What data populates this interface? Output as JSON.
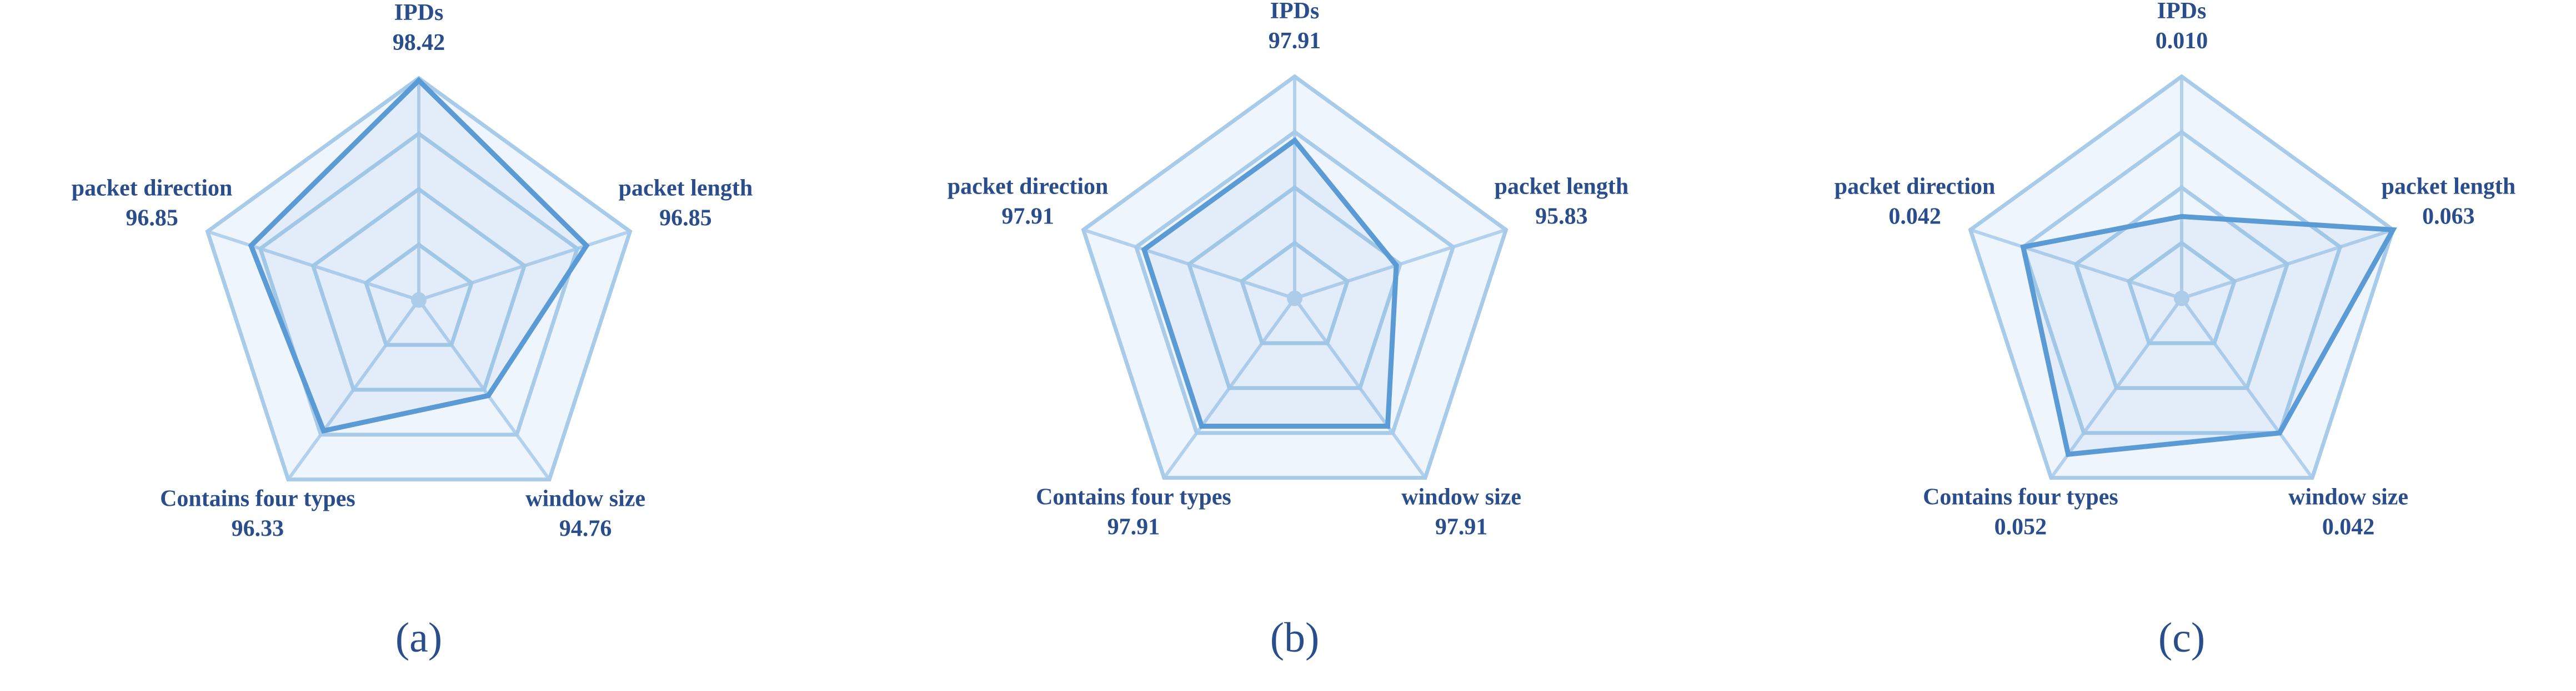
{
  "chart_data": [
    {
      "type": "radar",
      "caption": "(a)",
      "categories": [
        "IPDs",
        "packet length",
        "window size",
        "Contains four types",
        "packet direction"
      ],
      "values": [
        98.42,
        96.85,
        94.76,
        96.33,
        96.85
      ],
      "rlim": [
        90.5,
        98.5
      ],
      "rticks": [
        92.5,
        94.5,
        96.5,
        98.5
      ],
      "grid": true,
      "color": "#5b9bd5"
    },
    {
      "type": "radar",
      "caption": "(b)",
      "categories": [
        "IPDs",
        "packet length",
        "window size",
        "Contains four types",
        "packet direction"
      ],
      "values": [
        97.91,
        95.83,
        97.91,
        97.91,
        97.91
      ],
      "rlim": [
        91.5,
        100.5
      ],
      "rticks": [
        93.75,
        96,
        98.25,
        100.5
      ],
      "grid": true,
      "color": "#5b9bd5"
    },
    {
      "type": "radar",
      "caption": "(c)",
      "categories": [
        "IPDs",
        "packet length",
        "window size",
        "Contains four types",
        "packet direction"
      ],
      "values": [
        0.01,
        0.063,
        0.042,
        0.052,
        0.042
      ],
      "value_labels": [
        "0.010",
        "0.063",
        "0.042",
        "0.052",
        "0.042"
      ],
      "rlim": [
        -0.021,
        0.063
      ],
      "rticks": [
        0,
        0.021,
        0.042,
        0.063
      ],
      "grid": true,
      "color": "#5b9bd5"
    }
  ]
}
